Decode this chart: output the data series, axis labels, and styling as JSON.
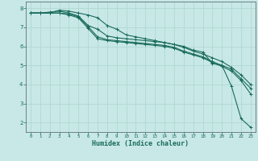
{
  "xlabel": "Humidex (Indice chaleur)",
  "background_color": "#c8e8e8",
  "grid_color": "#b0d8d0",
  "line_color": "#1a6b5a",
  "xlim": [
    -0.5,
    23.5
  ],
  "ylim": [
    1.5,
    8.35
  ],
  "yticks": [
    2,
    3,
    4,
    5,
    6,
    7,
    8
  ],
  "xticks": [
    0,
    1,
    2,
    3,
    4,
    5,
    6,
    7,
    8,
    9,
    10,
    11,
    12,
    13,
    14,
    15,
    16,
    17,
    18,
    19,
    20,
    21,
    22,
    23
  ],
  "lines": [
    [
      7.75,
      7.75,
      7.75,
      7.9,
      7.85,
      7.75,
      7.65,
      7.5,
      7.1,
      6.9,
      6.6,
      6.5,
      6.4,
      6.3,
      6.2,
      6.1,
      6.0,
      5.8,
      5.7,
      5.1,
      5.0,
      3.9,
      2.2,
      1.75
    ],
    [
      7.75,
      7.75,
      7.8,
      7.85,
      7.75,
      7.6,
      7.1,
      6.9,
      6.55,
      6.45,
      6.4,
      6.35,
      6.3,
      6.25,
      6.2,
      6.1,
      5.95,
      5.75,
      5.6,
      5.4,
      5.2,
      4.9,
      4.5,
      4.0
    ],
    [
      7.75,
      7.75,
      7.75,
      7.75,
      7.7,
      7.55,
      7.05,
      6.5,
      6.35,
      6.3,
      6.25,
      6.2,
      6.15,
      6.1,
      6.05,
      5.95,
      5.75,
      5.6,
      5.45,
      5.2,
      5.0,
      4.8,
      4.3,
      3.8
    ],
    [
      7.75,
      7.75,
      7.75,
      7.75,
      7.65,
      7.5,
      6.95,
      6.4,
      6.3,
      6.25,
      6.2,
      6.15,
      6.1,
      6.05,
      6.0,
      5.9,
      5.7,
      5.55,
      5.4,
      5.15,
      4.95,
      4.7,
      4.2,
      3.5
    ]
  ]
}
